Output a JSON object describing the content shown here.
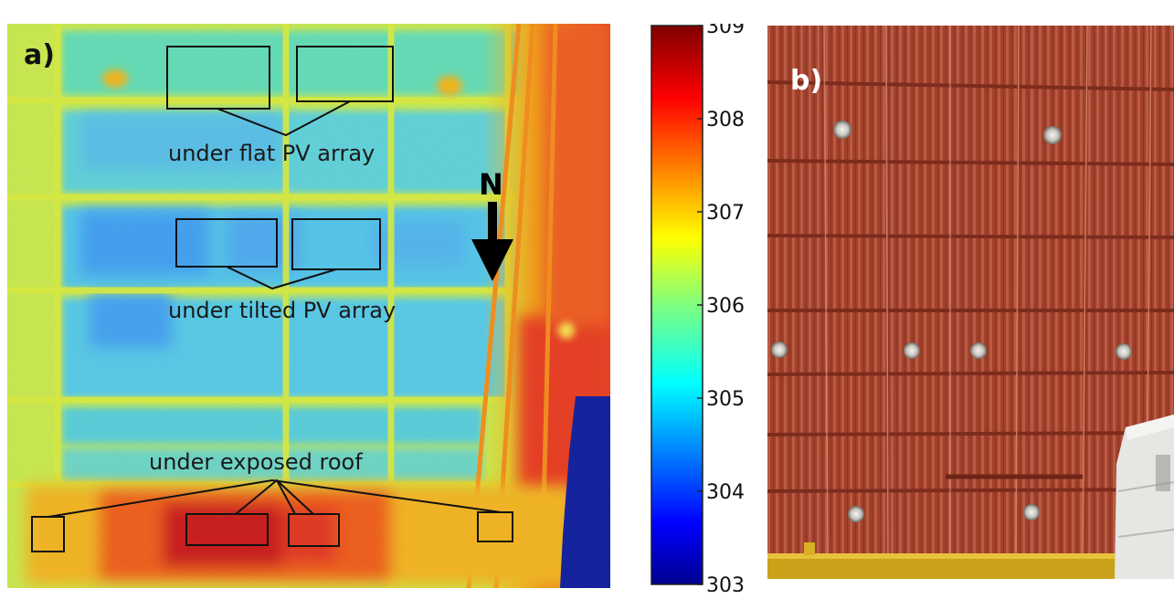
{
  "panel_a": {
    "label": "a)",
    "annotations": {
      "flat": "under flat PV array",
      "tilted": "under tilted PV array",
      "exposed": "under exposed roof"
    },
    "north_label": "N"
  },
  "colorbar": {
    "min": 303,
    "max": 309,
    "ticks": [
      "309",
      "308",
      "307",
      "306",
      "305",
      "304",
      "303"
    ]
  },
  "panel_b": {
    "label": "b)"
  }
}
